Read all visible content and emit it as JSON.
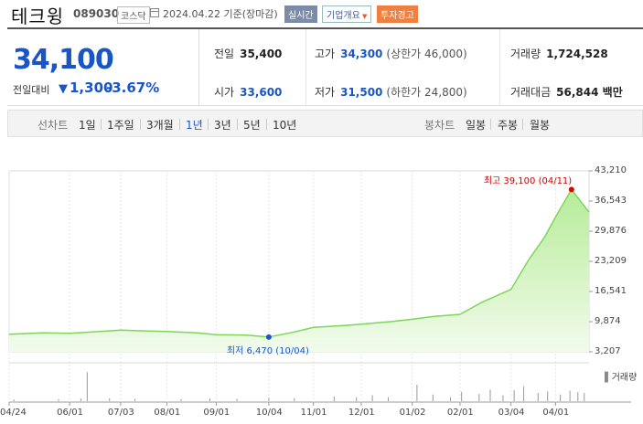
{
  "header": {
    "name": "테크윙",
    "code": "089030",
    "market": "코스닥",
    "date_text": "2024.04.22  기준(장마감)",
    "realtime_label": "실시간",
    "info_label": "기업개요",
    "warning_label": "투자경고"
  },
  "quote": {
    "price": "34,100",
    "change_label": "전일대비",
    "change_value": "1,300",
    "change_pct": "-3.67%",
    "prev_close_label": "전일",
    "prev_close": "35,400",
    "high_label": "고가",
    "high": "34,300",
    "upper_limit": "(상한가 46,000)",
    "volume_label": "거래량",
    "volume": "1,724,528",
    "open_label": "시가",
    "open": "33,600",
    "low_label": "저가",
    "low": "31,500",
    "lower_limit": "(하한가 24,800)",
    "amount_label": "거래대금",
    "amount": "56,844 백만"
  },
  "period_bar": {
    "line_label": "선차트",
    "line_periods": [
      "1일",
      "1주일",
      "3개월",
      "1년",
      "3년",
      "5년",
      "10년"
    ],
    "selected": "1년",
    "candle_label": "봉차트",
    "candle_periods": [
      "일봉",
      "주봉",
      "월봉"
    ]
  },
  "chart_data": {
    "type": "area",
    "ylim": [
      3207,
      43210
    ],
    "y_ticks": [
      "43,210",
      "36,543",
      "29,876",
      "23,209",
      "16,541",
      "9,874",
      "3,207"
    ],
    "x_tick_labels": [
      "04/24",
      "06/01",
      "07/03",
      "08/01",
      "09/01",
      "10/04",
      "11/01",
      "12/01",
      "01/02",
      "02/01",
      "03/04",
      "04/01"
    ],
    "x_tick_dates": [
      "2023-04-24",
      "2023-06-01",
      "2023-07-03",
      "2023-08-01",
      "2023-09-01",
      "2023-10-04",
      "2023-11-01",
      "2023-12-01",
      "2024-01-02",
      "2024-02-01",
      "2024-03-04",
      "2024-04-01"
    ],
    "x_range": [
      "2023-04-24",
      "2024-04-22"
    ],
    "price_series": {
      "x": [
        "2023-04-24",
        "2023-05-15",
        "2023-06-01",
        "2023-06-20",
        "2023-07-03",
        "2023-07-20",
        "2023-08-01",
        "2023-08-20",
        "2023-09-01",
        "2023-09-20",
        "2023-10-04",
        "2023-10-20",
        "2023-11-01",
        "2023-11-20",
        "2023-12-01",
        "2023-12-20",
        "2024-01-02",
        "2024-01-15",
        "2024-02-01",
        "2024-02-15",
        "2024-03-04",
        "2024-03-15",
        "2024-03-25",
        "2024-04-01",
        "2024-04-11",
        "2024-04-22"
      ],
      "y": [
        7100,
        7400,
        7300,
        7700,
        8000,
        7800,
        7700,
        7400,
        7000,
        6900,
        6470,
        7600,
        8600,
        9000,
        9300,
        9900,
        10400,
        11000,
        11500,
        14200,
        17000,
        23500,
        28500,
        33000,
        39100,
        34100
      ]
    },
    "volume_bars": {
      "x": [
        "2023-04-27",
        "2023-05-25",
        "2023-06-08",
        "2023-06-12",
        "2023-06-26",
        "2023-07-12",
        "2023-08-10",
        "2023-08-28",
        "2023-09-14",
        "2023-10-04",
        "2023-10-20",
        "2023-11-14",
        "2023-11-28",
        "2023-12-08",
        "2023-12-18",
        "2024-01-05",
        "2024-01-15",
        "2024-01-26",
        "2024-02-02",
        "2024-02-13",
        "2024-02-20",
        "2024-02-28",
        "2024-03-06",
        "2024-03-12",
        "2024-03-21",
        "2024-03-27",
        "2024-04-04",
        "2024-04-10",
        "2024-04-15",
        "2024-04-19"
      ],
      "values": [
        5,
        6,
        8,
        88,
        9,
        7,
        6,
        8,
        7,
        10,
        9,
        14,
        12,
        18,
        12,
        50,
        20,
        12,
        28,
        22,
        35,
        18,
        33,
        45,
        25,
        30,
        20,
        32,
        28,
        25
      ]
    },
    "volume_legend": "거래량",
    "annotations": {
      "high": {
        "label": "최고 39,100 (04/11)",
        "date": "2024-04-11",
        "value": 39100
      },
      "low": {
        "label": "최저 6,470 (10/04)",
        "date": "2023-10-04",
        "value": 6470
      }
    },
    "colors": {
      "line": "#7dd658",
      "fill_top": "#b6ec98",
      "fill_bottom": "#f2fbec",
      "high_dot": "#e00000",
      "low_dot": "#1a55c8",
      "volume": "#999999"
    }
  }
}
